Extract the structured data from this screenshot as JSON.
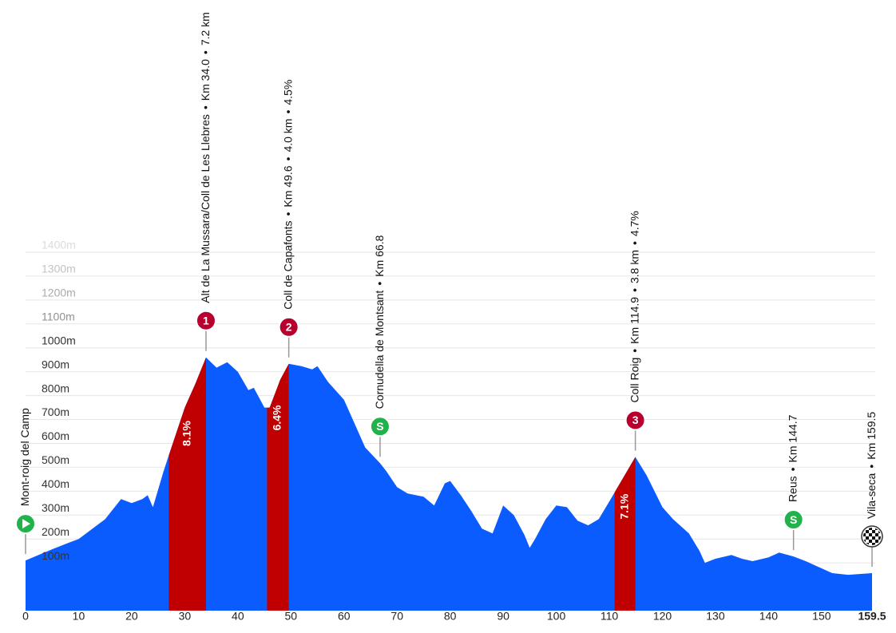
{
  "chart_data": {
    "type": "elevation-profile",
    "separator": "•",
    "x": [
      0,
      5,
      8,
      10,
      15,
      18,
      20,
      22,
      23,
      24,
      26,
      27,
      30,
      32,
      34,
      36,
      38,
      40,
      42,
      43,
      45,
      46,
      48,
      49.6,
      52,
      54,
      55,
      57,
      60,
      62,
      64,
      66.8,
      68,
      70,
      72,
      75,
      77,
      79,
      80,
      82,
      84,
      86,
      88,
      90,
      92,
      94,
      95,
      96,
      98,
      100,
      102,
      104,
      106,
      108,
      110,
      112,
      114.9,
      117,
      120,
      122,
      125,
      127,
      128,
      130,
      133,
      135,
      137,
      140,
      142,
      144.7,
      147,
      150,
      152,
      155,
      159.5
    ],
    "values": [
      110,
      157,
      183,
      200,
      283,
      367,
      350,
      367,
      383,
      333,
      483,
      550,
      750,
      850,
      960,
      917,
      940,
      900,
      823,
      833,
      750,
      750,
      867,
      933,
      923,
      910,
      923,
      857,
      783,
      683,
      583,
      517,
      483,
      417,
      390,
      377,
      340,
      433,
      443,
      383,
      317,
      243,
      223,
      340,
      300,
      217,
      163,
      200,
      283,
      340,
      333,
      277,
      257,
      283,
      357,
      433,
      543,
      467,
      333,
      283,
      223,
      150,
      100,
      117,
      133,
      117,
      107,
      123,
      143,
      127,
      107,
      77,
      57,
      50,
      57
    ],
    "color": "#0a5cff",
    "climb_color": "#c00000",
    "xlim": [
      0,
      159.5
    ],
    "xticks": [
      0,
      10,
      20,
      30,
      40,
      50,
      60,
      70,
      80,
      90,
      100,
      110,
      120,
      130,
      140,
      150,
      159.5
    ],
    "ylim": [
      -100,
      1400
    ],
    "yticks": [
      {
        "value": 100,
        "label": "100m"
      },
      {
        "value": 200,
        "label": "200m"
      },
      {
        "value": 300,
        "label": "300m"
      },
      {
        "value": 400,
        "label": "400m"
      },
      {
        "value": 500,
        "label": "500m"
      },
      {
        "value": 600,
        "label": "600m"
      },
      {
        "value": 700,
        "label": "700m"
      },
      {
        "value": 800,
        "label": "800m"
      },
      {
        "value": 900,
        "label": "900m"
      },
      {
        "value": 1000,
        "label": "1000m"
      },
      {
        "value": 1100,
        "label": "1100m"
      },
      {
        "value": 1200,
        "label": "1200m"
      },
      {
        "value": 1300,
        "label": "1300m"
      },
      {
        "value": 1400,
        "label": "1400m"
      }
    ],
    "grid": true,
    "climbs": [
      {
        "from": 27,
        "to": 34.0,
        "gradient": 8.1,
        "gradient_label": "8.1%"
      },
      {
        "from": 45.5,
        "to": 49.6,
        "gradient": 6.4,
        "gradient_label": "6.4%"
      },
      {
        "from": 111,
        "to": 114.9,
        "gradient": 7.1,
        "gradient_label": "7.1%"
      }
    ],
    "markers": [
      {
        "kind": "start",
        "km": 0,
        "name": "Mont-roig del Camp"
      },
      {
        "kind": "climb",
        "km": 34.0,
        "icon": "1",
        "name": "Alt de La Mussara/Coll de Les Llebres",
        "km_label": "Km 34.0",
        "length": "7.2 km"
      },
      {
        "kind": "climb",
        "km": 49.6,
        "icon": "2",
        "name": "Coll de Capafonts",
        "km_label": "Km 49.6",
        "length": "4.0 km",
        "avg_gradient": "4.5%"
      },
      {
        "kind": "sprint",
        "km": 66.8,
        "icon": "S",
        "name": "Cornudella de Montsant",
        "km_label": "Km 66.8"
      },
      {
        "kind": "climb",
        "km": 114.9,
        "icon": "3",
        "name": "Coll Roig",
        "km_label": "Km 114.9",
        "length": "3.8 km",
        "avg_gradient": "4.7%"
      },
      {
        "kind": "sprint",
        "km": 144.7,
        "icon": "S",
        "name": "Reus",
        "km_label": "Km 144.7"
      },
      {
        "kind": "finish",
        "km": 159.5,
        "name": "Vila-seca",
        "km_label": "Km 159.5"
      }
    ]
  }
}
